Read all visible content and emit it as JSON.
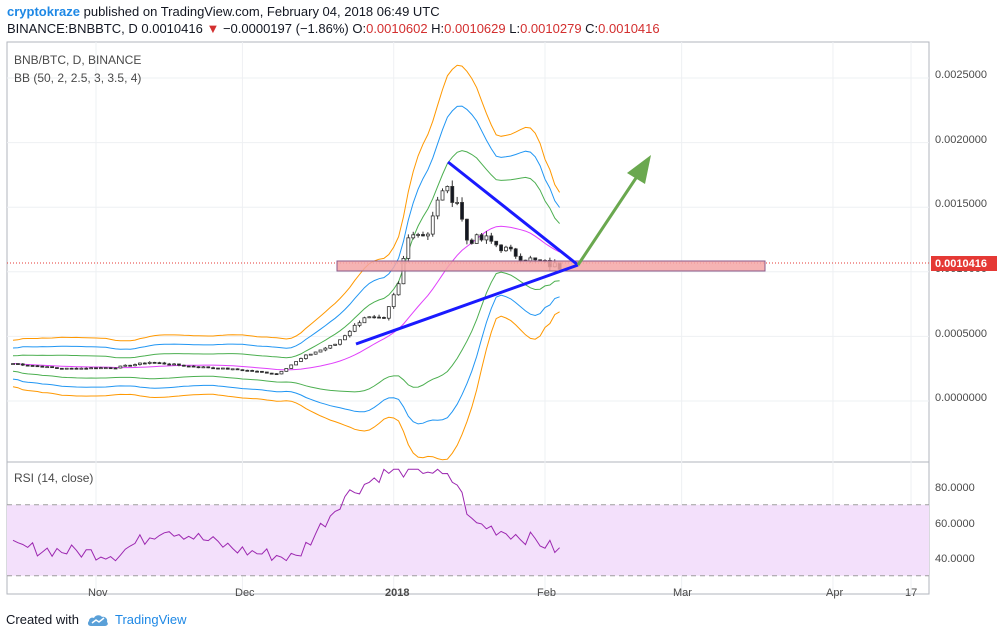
{
  "header": {
    "username": "cryptokraze",
    "published_text": "published on TradingView.com, February 04, 2018 06:49 UTC",
    "symbol_line": "BINANCE:BNBBTC, D",
    "last_price": "0.0010416",
    "change_arrow": "▼",
    "change_text": "−0.0000197 (−1.86%)",
    "o_label": "O:",
    "o_value": "0.0010602",
    "h_label": "H:",
    "h_value": "0.0010629",
    "l_label": "L:",
    "l_value": "0.0010279",
    "c_label": "C:",
    "c_value": "0.0010416"
  },
  "main_pane": {
    "legend_symbol": "BNB/BTC, D, BINANCE",
    "legend_indicator": "BB (50, 2, 2.5, 3, 3.5, 4)",
    "price_tag": "0.0010416",
    "y_ticks": [
      "0.0025000",
      "0.0020000",
      "0.0015000",
      "0.0010000",
      "0.0005000",
      "0.0000000"
    ],
    "y_tick_values": [
      0.0025,
      0.002,
      0.0015,
      0.001,
      0.0005,
      0.0
    ]
  },
  "rsi_pane": {
    "legend": "RSI (14, close)",
    "y_ticks": [
      "80.0000",
      "60.0000",
      "40.0000"
    ],
    "y_tick_values": [
      80,
      60,
      40
    ]
  },
  "x_axis": {
    "labels": [
      "Nov",
      "Dec",
      "2018",
      "Feb",
      "Mar",
      "Apr",
      "17"
    ]
  },
  "footer": {
    "created_with": "Created with",
    "brand": "TradingView"
  },
  "colors": {
    "up_candle": "#ffffff",
    "down_candle": "#131722",
    "bb_basis": "#e040fb",
    "bb_band1": "#4caf50",
    "bb_band2": "#2196f3",
    "bb_band3": "#ff9800",
    "trendline": "#1a1aff",
    "arrow": "#6aa84f",
    "zone_fill": "#f4a6a6",
    "rsi_line": "#9c27b0",
    "rsi_band": "#f3e0fb",
    "price_tag_bg": "#e53935"
  },
  "chart_data": {
    "type": "line",
    "symbol": "BNB/BTC",
    "timeframe": "D",
    "exchange": "BINANCE",
    "price_scale": [
      0.0,
      0.0025
    ],
    "rsi_scale": [
      30,
      90
    ],
    "close_series": [
      {
        "date": "2017-10-15",
        "close": 0.00029
      },
      {
        "date": "2017-10-25",
        "close": 0.00025
      },
      {
        "date": "2017-11-05",
        "close": 0.00026
      },
      {
        "date": "2017-11-12",
        "close": 0.0003
      },
      {
        "date": "2017-11-20",
        "close": 0.00027
      },
      {
        "date": "2017-12-01",
        "close": 0.00024
      },
      {
        "date": "2017-12-08",
        "close": 0.00021
      },
      {
        "date": "2017-12-14",
        "close": 0.00035
      },
      {
        "date": "2017-12-20",
        "close": 0.00044
      },
      {
        "date": "2017-12-26",
        "close": 0.00065
      },
      {
        "date": "2017-12-30",
        "close": 0.00063
      },
      {
        "date": "2018-01-02",
        "close": 0.0009
      },
      {
        "date": "2018-01-04",
        "close": 0.0013
      },
      {
        "date": "2018-01-08",
        "close": 0.0013
      },
      {
        "date": "2018-01-11",
        "close": 0.00165
      },
      {
        "date": "2018-01-14",
        "close": 0.00155
      },
      {
        "date": "2018-01-16",
        "close": 0.00125
      },
      {
        "date": "2018-01-20",
        "close": 0.00125
      },
      {
        "date": "2018-01-25",
        "close": 0.00115
      },
      {
        "date": "2018-01-30",
        "close": 0.00108
      },
      {
        "date": "2018-02-04",
        "close": 0.00104
      }
    ],
    "annotations": {
      "resistance_zone": [
        0.001,
        0.00108
      ],
      "triangle_apex_date": "2018-02-06",
      "projection": "upward arrow from triangle apex"
    },
    "rsi_series": [
      {
        "date": "2017-10-15",
        "rsi": 46
      },
      {
        "date": "2017-11-05",
        "rsi": 42
      },
      {
        "date": "2017-11-15",
        "rsi": 57
      },
      {
        "date": "2017-12-01",
        "rsi": 44
      },
      {
        "date": "2017-12-12",
        "rsi": 40
      },
      {
        "date": "2017-12-22",
        "rsi": 75
      },
      {
        "date": "2017-12-30",
        "rsi": 88
      },
      {
        "date": "2018-01-08",
        "rsi": 90
      },
      {
        "date": "2018-01-14",
        "rsi": 82
      },
      {
        "date": "2018-01-17",
        "rsi": 60
      },
      {
        "date": "2018-01-30",
        "rsi": 50
      },
      {
        "date": "2018-02-04",
        "rsi": 44
      }
    ]
  }
}
